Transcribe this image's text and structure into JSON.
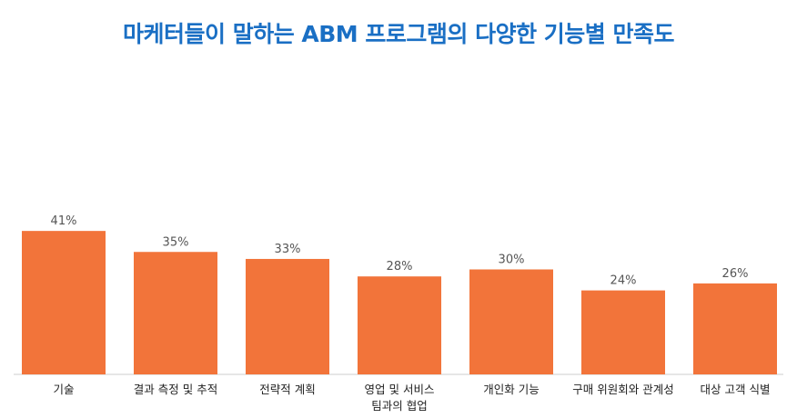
{
  "chart_data": {
    "type": "bar",
    "title": "마케터들이 말하는 ABM 프로그램의 다양한 기능별 만족도",
    "categories": [
      [
        "기술"
      ],
      [
        "결과 측정 및 추적"
      ],
      [
        "전략적 계획"
      ],
      [
        "영업 및 서비스",
        "팀과의 협업"
      ],
      [
        "개인화 기능"
      ],
      [
        "구매 위원회와 관계성"
      ],
      [
        "대상 고객 식별"
      ]
    ],
    "values": [
      41,
      35,
      33,
      28,
      30,
      24,
      26
    ],
    "value_labels": [
      "41%",
      "35%",
      "33%",
      "28%",
      "30%",
      "24%",
      "26%"
    ],
    "ylim": [
      0,
      100
    ],
    "bar_color": "#f2743a",
    "axis_color": "#cccccc"
  }
}
